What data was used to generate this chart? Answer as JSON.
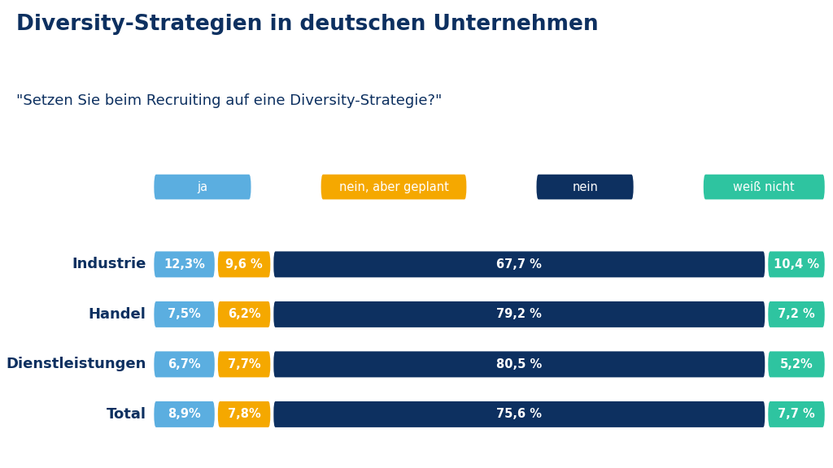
{
  "title": "Diversity-Strategien in deutschen Unternehmen",
  "subtitle": "\"Setzen Sie beim Recruiting auf eine Diversity-Strategie?\"",
  "categories": [
    "Industrie",
    "Handel",
    "Dienstleistungen",
    "Total"
  ],
  "labels": {
    "ja": [
      "12,3%",
      "7,5%",
      "6,7%",
      "8,9%"
    ],
    "nein_aber": [
      "9,6 %",
      "6,2%",
      "7,7%",
      "7,8%"
    ],
    "nein": [
      "67,7 %",
      "79,2 %",
      "80,5 %",
      "75,6 %"
    ],
    "weiss_nicht": [
      "10,4 %",
      "7,2 %",
      "5,2%",
      "7,7 %"
    ]
  },
  "colors": {
    "ja": "#5BAEE0",
    "nein_aber": "#F5A800",
    "nein": "#0D3060",
    "weiss_nicht": "#2EC4A0"
  },
  "legend_labels": [
    "ja",
    "nein, aber geplant",
    "nein",
    "weiß nicht"
  ],
  "background_color": "#ffffff",
  "title_color": "#0D3060",
  "subtitle_color": "#0D3060",
  "category_color": "#0D3060"
}
